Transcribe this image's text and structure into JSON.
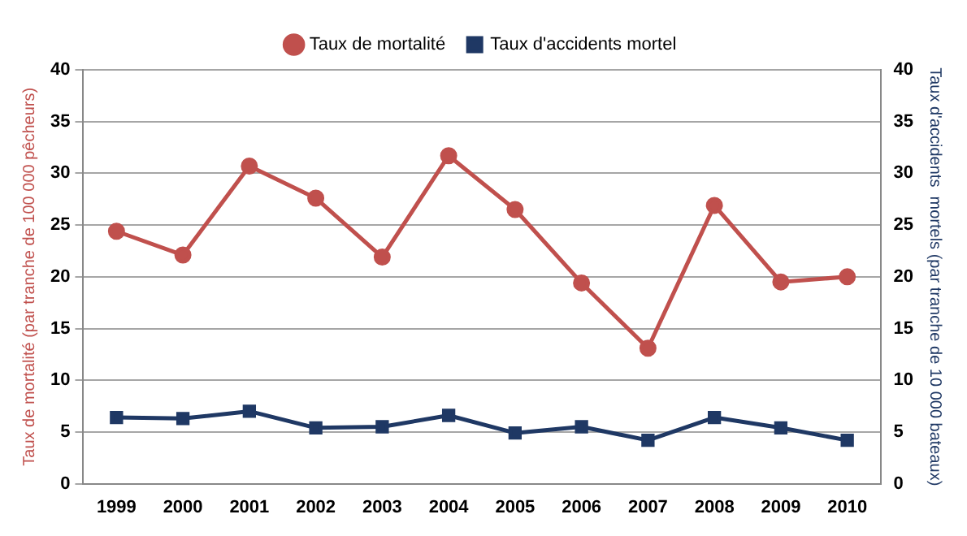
{
  "chart_data": {
    "type": "line",
    "categories": [
      "1999",
      "2000",
      "2001",
      "2002",
      "2003",
      "2004",
      "2005",
      "2006",
      "2007",
      "2008",
      "2009",
      "2010"
    ],
    "series": [
      {
        "name": "Taux de mortalité",
        "color": "#c0504d",
        "marker": "circle",
        "values": [
          24.4,
          22.1,
          30.7,
          27.6,
          21.9,
          31.7,
          26.5,
          19.4,
          13.1,
          26.9,
          19.5,
          20.0
        ]
      },
      {
        "name": "Taux d'accidents mortel",
        "color": "#1f3864",
        "marker": "square",
        "axis": "y2",
        "values": [
          6.4,
          6.3,
          7.0,
          5.4,
          5.5,
          6.6,
          4.9,
          5.5,
          4.2,
          6.4,
          5.4,
          4.2
        ]
      }
    ],
    "ylabel": "Taux de mortalité (par tranche de 100 000 pêcheurs)",
    "y2label": "Taux d'accidents  mortels (par tranche de 10 000 bateaux)",
    "ylim": [
      0,
      40
    ],
    "yticks": [
      0,
      5,
      10,
      15,
      20,
      25,
      30,
      35,
      40
    ],
    "y2lim": [
      0,
      40
    ],
    "y2ticks": [
      0,
      5,
      10,
      15,
      20,
      25,
      30,
      35,
      40
    ],
    "grid": "y",
    "legend": "top"
  }
}
